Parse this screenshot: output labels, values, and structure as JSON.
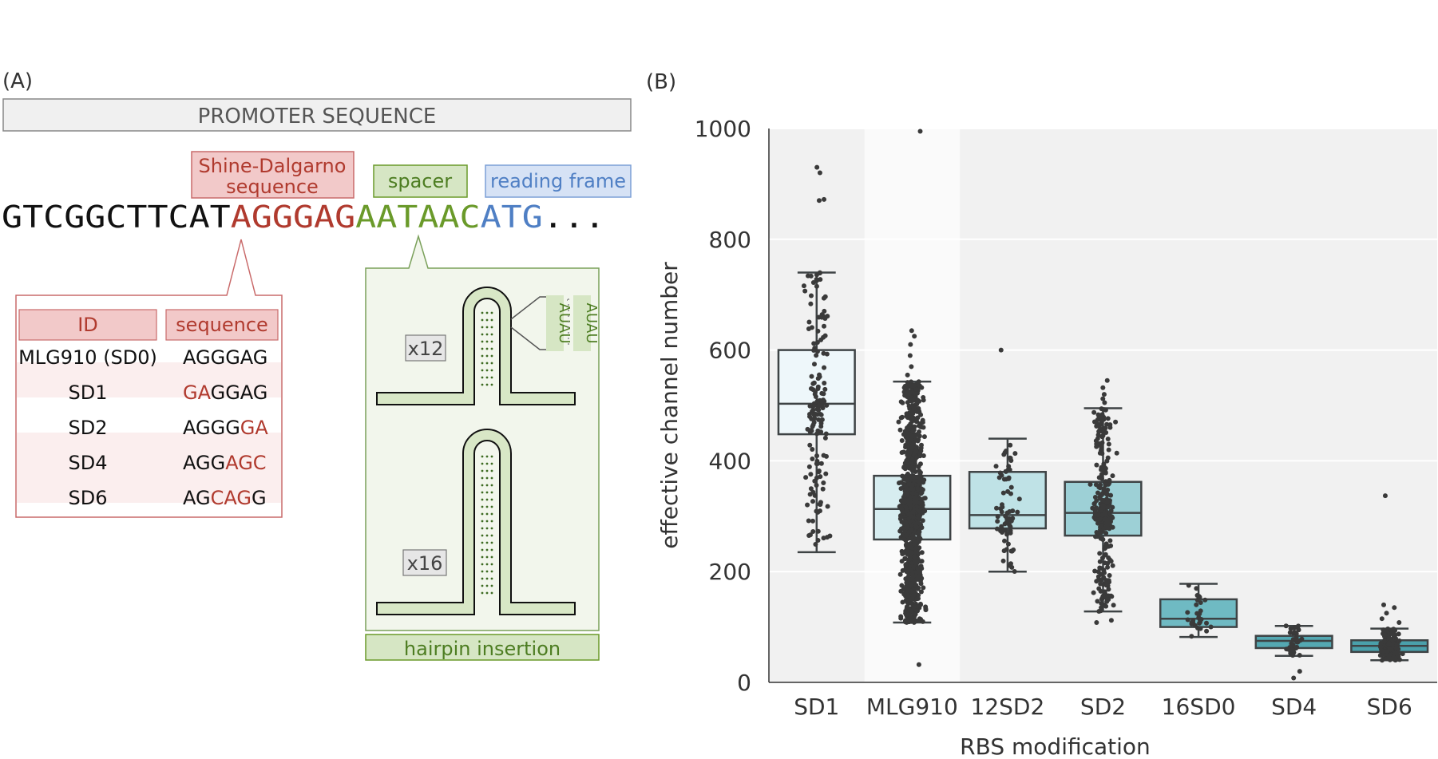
{
  "panelA": {
    "label": "(A)",
    "promoter": "PROMOTER SEQUENCE",
    "sd_label_1": "Shine-Dalgarno",
    "sd_label_2": "sequence",
    "spacer_label": "spacer",
    "rf_label": "reading frame",
    "seq_prefix": "GTCGGCTTCAT",
    "seq_sd": "AGGGAG",
    "seq_spacer": "AATAAC",
    "seq_atg": "ATG",
    "seq_dots": "...",
    "table": {
      "header_id": "ID",
      "header_seq": "sequence",
      "rows": [
        {
          "id": "MLG910 (SD0)",
          "seq": [
            {
              "t": "AGGGAG",
              "m": false
            }
          ]
        },
        {
          "id": "SD1",
          "seq": [
            {
              "t": "GA",
              "m": true
            },
            {
              "t": "GGAG",
              "m": false
            }
          ]
        },
        {
          "id": "SD2",
          "seq": [
            {
              "t": "AGGG",
              "m": false
            },
            {
              "t": "GA",
              "m": true
            }
          ]
        },
        {
          "id": "SD4",
          "seq": [
            {
              "t": "AGG",
              "m": false
            },
            {
              "t": "AGC",
              "m": true
            }
          ]
        },
        {
          "id": "SD6",
          "seq": [
            {
              "t": "AG",
              "m": false
            },
            {
              "t": "CAG",
              "m": true
            },
            {
              "t": "G",
              "m": false
            }
          ]
        }
      ]
    },
    "hairpin": {
      "x12": "x12",
      "x16": "x16",
      "repeat_unit": "AUAU",
      "label": "hairpin insertion"
    }
  },
  "panelB": {
    "label": "(B)"
  },
  "colors": {
    "sd_red": "#b03a2e",
    "spacer_green": "#6a9a2a",
    "atg_blue": "#4f7fc4",
    "plot_bg": "#f1f1f1",
    "band_light": "#fafafa"
  },
  "chart_data": {
    "type": "box",
    "xlabel": "RBS modification",
    "ylabel": "effective channel number",
    "ylim": [
      0,
      1000
    ],
    "yticks": [
      0,
      200,
      400,
      600,
      800,
      1000
    ],
    "grid": true,
    "categories": [
      "SD1",
      "MLG910",
      "12SD2",
      "SD2",
      "16SD0",
      "SD4",
      "SD6"
    ],
    "box_colors": [
      "#eef7fa",
      "#d7edf0",
      "#bfe2e6",
      "#9dd0d6",
      "#6fbac3",
      "#54a8b2",
      "#4aa0ab"
    ],
    "highlight_band": "MLG910",
    "boxes": [
      {
        "name": "SD1",
        "whisker_low": 235,
        "q1": 448,
        "median": 503,
        "q3": 600,
        "whisker_high": 740,
        "outliers": [
          870,
          872,
          920,
          930
        ],
        "n": 150
      },
      {
        "name": "MLG910",
        "whisker_low": 108,
        "q1": 258,
        "median": 313,
        "q3": 373,
        "whisker_high": 543,
        "outliers": [
          32,
          995,
          555,
          570,
          590,
          610,
          625,
          635
        ],
        "n": 1300
      },
      {
        "name": "12SD2",
        "whisker_low": 200,
        "q1": 278,
        "median": 302,
        "q3": 380,
        "whisker_high": 440,
        "outliers": [
          600
        ],
        "n": 70
      },
      {
        "name": "SD2",
        "whisker_low": 128,
        "q1": 265,
        "median": 306,
        "q3": 362,
        "whisker_high": 495,
        "outliers": [
          108,
          112,
          505,
          512,
          520,
          532,
          545
        ],
        "n": 300
      },
      {
        "name": "16SD0",
        "whisker_low": 82,
        "q1": 100,
        "median": 115,
        "q3": 150,
        "whisker_high": 178,
        "outliers": [],
        "n": 30
      },
      {
        "name": "SD4",
        "whisker_low": 48,
        "q1": 62,
        "median": 75,
        "q3": 84,
        "whisker_high": 102,
        "outliers": [
          8,
          20
        ],
        "n": 35
      },
      {
        "name": "SD6",
        "whisker_low": 40,
        "q1": 55,
        "median": 66,
        "q3": 76,
        "whisker_high": 97,
        "outliers": [
          108,
          115,
          125,
          135,
          140,
          337
        ],
        "n": 160
      }
    ]
  }
}
